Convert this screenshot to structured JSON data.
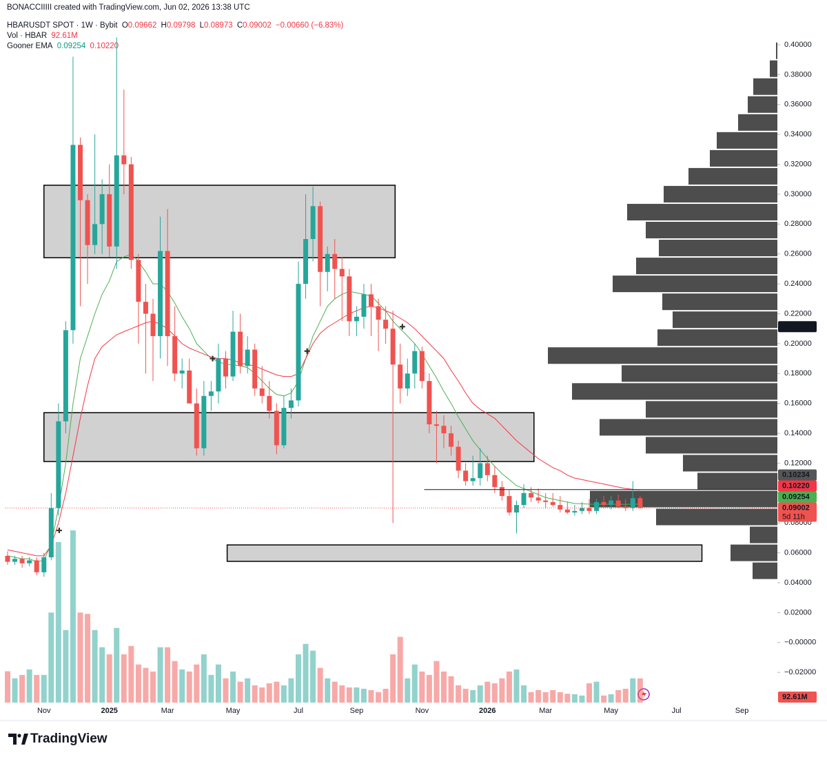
{
  "header": {
    "credit": "BONACCIIIII created with TradingView.com, Jun 02, 2026 13:38 UTC",
    "symbol": "HBARUSDT SPOT · 1W · Bybit",
    "ohlc_prefixes": [
      "O",
      "H",
      "L",
      "C"
    ],
    "change": "−0.00660 (−6.83%)",
    "volume_title": "Vol · HBAR",
    "ema_title": "Gooner EMA",
    "brand": "TradingView"
  },
  "chart_data": {
    "type": "candlestick",
    "categories": [
      null,
      null,
      null,
      null,
      null,
      "Nov",
      null,
      null,
      null,
      null,
      null,
      null,
      null,
      null,
      "2025",
      null,
      null,
      null,
      null,
      null,
      null,
      null,
      "Mar",
      null,
      null,
      null,
      null,
      null,
      null,
      null,
      null,
      "May",
      null,
      null,
      null,
      null,
      null,
      null,
      null,
      null,
      "Jul",
      null,
      null,
      null,
      null,
      null,
      null,
      null,
      "Sep",
      null,
      null,
      null,
      null,
      null,
      null,
      null,
      null,
      "Nov",
      null,
      null,
      null,
      null,
      null,
      null,
      null,
      null,
      "2026",
      null,
      null,
      null,
      null,
      null,
      null,
      null,
      "Mar",
      null,
      null,
      null,
      null,
      null,
      null,
      null,
      null,
      "May",
      null,
      null,
      null,
      null,
      null,
      null,
      null,
      null,
      "Jul",
      null,
      null,
      null,
      null,
      null,
      null,
      null,
      null,
      "Sep",
      null,
      null
    ],
    "open": [
      0.058,
      0.054,
      0.056,
      0.053,
      0.055,
      0.047,
      0.057,
      0.09,
      0.148,
      0.209,
      0.333,
      0.296,
      0.266,
      0.28,
      0.3,
      0.265,
      0.326,
      0.32,
      0.256,
      0.228,
      0.22,
      0.205,
      0.262,
      0.205,
      0.18,
      0.182,
      0.16,
      0.13,
      0.165,
      0.168,
      0.19,
      0.178,
      0.208,
      0.185,
      0.196,
      0.17,
      0.165,
      0.155,
      0.132,
      0.157,
      0.162,
      0.24,
      0.27,
      0.292,
      0.248,
      0.26,
      0.25,
      0.245,
      0.215,
      0.218,
      0.233,
      0.225,
      0.216,
      0.21,
      0.186,
      0.17,
      0.18,
      0.195,
      0.175,
      0.146,
      0.145,
      0.14,
      0.131,
      0.115,
      0.108,
      0.11,
      0.12,
      0.112,
      0.104,
      0.098,
      0.087,
      0.092,
      0.1,
      0.097,
      0.095,
      0.094,
      0.092,
      0.089,
      0.087,
      0.088,
      0.09,
      0.088,
      0.094,
      0.092,
      0.095,
      0.091,
      0.09,
      0.09662,
      null,
      null,
      null,
      null,
      null,
      null,
      null,
      null,
      null,
      null,
      null,
      null,
      null,
      null,
      null,
      null
    ],
    "high": [
      0.061,
      0.058,
      0.058,
      0.057,
      0.057,
      0.06,
      0.1,
      0.16,
      0.215,
      0.392,
      0.338,
      0.3,
      0.34,
      0.31,
      0.32,
      0.405,
      0.37,
      0.325,
      0.26,
      0.24,
      0.23,
      0.285,
      0.29,
      0.225,
      0.19,
      0.19,
      0.17,
      0.175,
      0.175,
      0.2,
      0.195,
      0.222,
      0.22,
      0.205,
      0.2,
      0.185,
      0.175,
      0.16,
      0.165,
      0.17,
      0.255,
      0.3,
      0.305,
      0.295,
      0.265,
      0.27,
      0.258,
      0.25,
      0.225,
      0.24,
      0.24,
      0.23,
      0.225,
      0.222,
      0.2,
      0.19,
      0.2,
      0.198,
      0.18,
      0.155,
      0.152,
      0.145,
      0.135,
      0.12,
      0.125,
      0.13,
      0.125,
      0.118,
      0.108,
      0.102,
      0.095,
      0.106,
      0.104,
      0.103,
      0.1,
      0.1,
      0.098,
      0.094,
      0.092,
      0.094,
      0.096,
      0.096,
      0.098,
      0.098,
      0.099,
      0.096,
      0.108,
      0.09798,
      null,
      null,
      null,
      null,
      null,
      null,
      null,
      null,
      null,
      null,
      null,
      null,
      null,
      null,
      null,
      null
    ],
    "low": [
      0.052,
      0.052,
      0.05,
      0.051,
      0.045,
      0.044,
      0.055,
      0.085,
      0.14,
      0.2,
      0.225,
      0.24,
      0.26,
      0.26,
      0.258,
      0.25,
      0.3,
      0.25,
      0.2,
      0.18,
      0.175,
      0.19,
      0.185,
      0.175,
      0.17,
      0.16,
      0.125,
      0.125,
      0.155,
      0.16,
      0.17,
      0.175,
      0.18,
      0.18,
      0.165,
      0.16,
      0.15,
      0.126,
      0.13,
      0.15,
      0.158,
      0.23,
      0.255,
      0.225,
      0.235,
      0.23,
      0.215,
      0.205,
      0.205,
      0.21,
      0.205,
      0.195,
      0.2,
      0.08,
      0.16,
      0.165,
      0.17,
      0.17,
      0.14,
      0.12,
      0.13,
      0.125,
      0.11,
      0.105,
      0.105,
      0.105,
      0.108,
      0.1,
      0.095,
      0.085,
      0.073,
      0.09,
      0.094,
      0.093,
      0.09,
      0.091,
      0.087,
      0.086,
      0.085,
      0.086,
      0.086,
      0.086,
      0.09,
      0.089,
      0.09,
      0.088,
      0.088,
      0.08973,
      null,
      null,
      null,
      null,
      null,
      null,
      null,
      null,
      null,
      null,
      null,
      null,
      null,
      null,
      null,
      null
    ],
    "close": [
      0.054,
      0.056,
      0.053,
      0.055,
      0.047,
      0.057,
      0.09,
      0.148,
      0.209,
      0.333,
      0.296,
      0.266,
      0.28,
      0.3,
      0.265,
      0.326,
      0.32,
      0.256,
      0.228,
      0.22,
      0.205,
      0.262,
      0.205,
      0.18,
      0.182,
      0.16,
      0.13,
      0.165,
      0.168,
      0.19,
      0.178,
      0.208,
      0.185,
      0.196,
      0.17,
      0.165,
      0.155,
      0.132,
      0.157,
      0.162,
      0.24,
      0.27,
      0.292,
      0.248,
      0.26,
      0.25,
      0.245,
      0.215,
      0.218,
      0.233,
      0.225,
      0.216,
      0.21,
      0.186,
      0.17,
      0.18,
      0.195,
      0.175,
      0.146,
      0.145,
      0.14,
      0.131,
      0.115,
      0.108,
      0.11,
      0.12,
      0.112,
      0.104,
      0.098,
      0.087,
      0.092,
      0.1,
      0.097,
      0.095,
      0.094,
      0.092,
      0.089,
      0.087,
      0.088,
      0.09,
      0.088,
      0.094,
      0.092,
      0.095,
      0.091,
      0.09,
      0.09662,
      0.09002,
      null,
      null,
      null,
      null,
      null,
      null,
      null,
      null,
      null,
      null,
      null,
      null,
      null,
      null,
      null,
      null
    ],
    "volume": [
      120,
      93,
      106,
      127,
      106,
      106,
      345,
      615,
      278,
      660,
      345,
      340,
      278,
      212,
      185,
      286,
      185,
      217,
      146,
      133,
      119,
      212,
      212,
      159,
      127,
      119,
      146,
      185,
      106,
      146,
      93,
      119,
      80,
      93,
      66,
      58,
      74,
      80,
      66,
      93,
      185,
      225,
      199,
      133,
      93,
      80,
      66,
      58,
      58,
      53,
      48,
      40,
      53,
      185,
      252,
      93,
      146,
      119,
      106,
      159,
      119,
      101,
      66,
      53,
      48,
      66,
      80,
      74,
      93,
      119,
      127,
      66,
      40,
      48,
      40,
      48,
      40,
      34,
      32,
      27,
      74,
      80,
      27,
      32,
      48,
      53,
      93,
      92.61,
      null,
      null,
      null,
      null,
      null,
      null,
      null,
      null,
      null,
      null,
      null,
      null,
      null,
      null,
      null,
      null
    ],
    "volume_label": "92.61M",
    "ema": [
      {
        "color": "#4caf50",
        "last_label": "0.09254",
        "values": [
          0.058,
          0.057,
          0.056,
          0.056,
          0.054,
          0.055,
          0.066,
          0.09,
          0.12,
          0.16,
          0.19,
          0.205,
          0.22,
          0.233,
          0.242,
          0.255,
          0.258,
          0.26,
          0.255,
          0.248,
          0.24,
          0.24,
          0.235,
          0.227,
          0.218,
          0.21,
          0.2,
          0.195,
          0.19,
          0.188,
          0.186,
          0.186,
          0.185,
          0.184,
          0.18,
          0.175,
          0.17,
          0.166,
          0.165,
          0.167,
          0.175,
          0.19,
          0.205,
          0.215,
          0.225,
          0.23,
          0.233,
          0.235,
          0.234,
          0.233,
          0.232,
          0.227,
          0.222,
          0.215,
          0.21,
          0.205,
          0.2,
          0.193,
          0.185,
          0.177,
          0.168,
          0.16,
          0.151,
          0.143,
          0.135,
          0.129,
          0.123,
          0.118,
          0.113,
          0.109,
          0.105,
          0.103,
          0.101,
          0.099,
          0.097,
          0.096,
          0.095,
          0.094,
          0.093,
          0.0928,
          0.0926,
          0.0925,
          0.0925,
          0.0925,
          0.0925,
          0.0924,
          0.0926,
          0.09254,
          null,
          null,
          null,
          null,
          null,
          null,
          null,
          null,
          null,
          null,
          null,
          null,
          null,
          null,
          null,
          null
        ]
      },
      {
        "color": "#f23645",
        "last_label": "0.10220",
        "values": [
          0.062,
          0.061,
          0.06,
          0.059,
          0.058,
          0.058,
          0.065,
          0.08,
          0.1,
          0.125,
          0.15,
          0.172,
          0.19,
          0.198,
          0.202,
          0.206,
          0.208,
          0.21,
          0.212,
          0.214,
          0.215,
          0.213,
          0.21,
          0.205,
          0.2,
          0.197,
          0.195,
          0.193,
          0.191,
          0.19,
          0.19,
          0.189,
          0.187,
          0.186,
          0.185,
          0.183,
          0.181,
          0.179,
          0.178,
          0.178,
          0.18,
          0.19,
          0.2,
          0.207,
          0.211,
          0.214,
          0.217,
          0.22,
          0.222,
          0.224,
          0.225,
          0.224,
          0.222,
          0.22,
          0.217,
          0.214,
          0.21,
          0.205,
          0.2,
          0.195,
          0.19,
          0.182,
          0.175,
          0.167,
          0.16,
          0.156,
          0.153,
          0.15,
          0.145,
          0.14,
          0.135,
          0.131,
          0.127,
          0.123,
          0.12,
          0.117,
          0.115,
          0.112,
          0.11,
          0.109,
          0.108,
          0.107,
          0.106,
          0.105,
          0.104,
          0.103,
          0.1025,
          0.1022,
          null,
          null,
          null,
          null,
          null,
          null,
          null,
          null,
          null,
          null,
          null,
          null,
          null,
          null,
          null,
          null
        ]
      }
    ],
    "up_color": "#26a69a",
    "down_color": "#ef5350",
    "zones": [
      {
        "x": [
          5,
          53.3
        ],
        "y": [
          0.2575,
          0.306
        ]
      },
      {
        "x": [
          5,
          72.4
        ],
        "y": [
          0.1211,
          0.1538
        ]
      },
      {
        "x": [
          30.2,
          95.5
        ],
        "y": [
          0.0543,
          0.0653
        ]
      }
    ],
    "zone_color": "#cccccc",
    "hline": {
      "value": 0.10234,
      "x_start": 57.3
    },
    "markers": [
      {
        "x": 7.1,
        "y": 0.075
      },
      {
        "x": 28.2,
        "y": 0.19
      },
      {
        "x": 41.2,
        "y": 0.195
      },
      {
        "x": 54.3,
        "y": 0.21136
      }
    ],
    "countdown": "5d 11h",
    "volume_profile": {
      "color": "#434343",
      "bins": [
        0.402,
        0.39,
        0.378,
        0.366,
        0.354,
        0.342,
        0.33,
        0.318,
        0.306,
        0.294,
        0.282,
        0.27,
        0.258,
        0.246,
        0.234,
        0.222,
        0.21,
        0.198,
        0.186,
        0.174,
        0.162,
        0.15,
        0.138,
        0.126,
        0.114,
        0.102,
        0.09,
        0.078,
        0.066,
        0.054,
        0.042
      ],
      "values": [
        2,
        11,
        35,
        43,
        57,
        88,
        98,
        129,
        165,
        218,
        191,
        172,
        205,
        239,
        167,
        152,
        174,
        333,
        226,
        298,
        191,
        258,
        191,
        137,
        116,
        272,
        176,
        40,
        68,
        36
      ]
    },
    "ylim": [
      -0.04021,
      0.40922
    ],
    "yticks": [
      {
        "value": 0.4,
        "label": "0.40000"
      },
      {
        "value": 0.38,
        "label": "0.38000"
      },
      {
        "value": 0.36,
        "label": "0.36000"
      },
      {
        "value": 0.34,
        "label": "0.34000"
      },
      {
        "value": 0.32,
        "label": "0.32000"
      },
      {
        "value": 0.3,
        "label": "0.30000"
      },
      {
        "value": 0.28,
        "label": "0.28000"
      },
      {
        "value": 0.26,
        "label": "0.26000"
      },
      {
        "value": 0.24,
        "label": "0.24000"
      },
      {
        "value": 0.22,
        "label": "0.22000"
      },
      {
        "value": 0.2,
        "label": "0.20000"
      },
      {
        "value": 0.18,
        "label": "0.18000"
      },
      {
        "value": 0.16,
        "label": "0.16000"
      },
      {
        "value": 0.14,
        "label": "0.14000"
      },
      {
        "value": 0.12,
        "label": "0.12000"
      },
      {
        "value": 0.1,
        "label": "0.10000"
      },
      {
        "value": 0.08,
        "label": "0.08000"
      },
      {
        "value": 0.06,
        "label": "0.06000"
      },
      {
        "value": 0.04,
        "label": "0.04000"
      },
      {
        "value": 0.02,
        "label": "0.02000"
      },
      {
        "value": 0,
        "label": "−0.00000"
      },
      {
        "value": -0.02,
        "label": "−0.02000"
      }
    ]
  }
}
